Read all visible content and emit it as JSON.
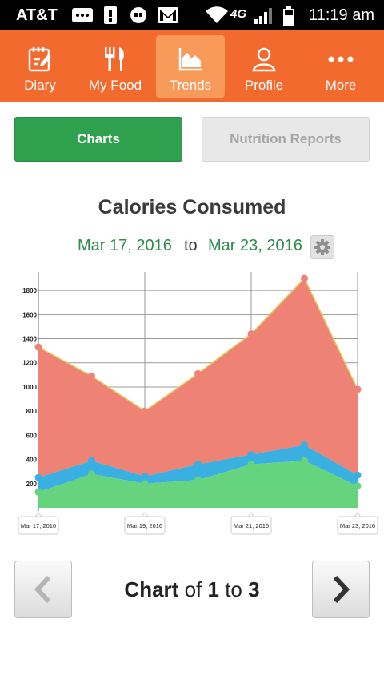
{
  "statusbar": {
    "carrier": "AT&T",
    "time": "11:19 am",
    "network": "4G"
  },
  "nav": {
    "items": [
      {
        "label": "Diary",
        "icon": "diary-icon"
      },
      {
        "label": "My Food",
        "icon": "fork-knife-icon"
      },
      {
        "label": "Trends",
        "icon": "trends-icon",
        "active": true
      },
      {
        "label": "Profile",
        "icon": "profile-icon"
      },
      {
        "label": "More",
        "icon": "more-dots-icon"
      }
    ]
  },
  "segments": {
    "charts": "Charts",
    "reports": "Nutrition Reports"
  },
  "chart_header": {
    "title": "Calories Consumed",
    "start_date": "Mar 17, 2016",
    "to": "to",
    "end_date": "Mar 23, 2016"
  },
  "chart_data": {
    "type": "area",
    "title": "Calories Consumed",
    "x": [
      "Mar 17, 2016",
      "Mar 18, 2016",
      "Mar 19, 2016",
      "Mar 20, 2016",
      "Mar 21, 2016",
      "Mar 22, 2016",
      "Mar 23, 2016"
    ],
    "x_tick_labels": [
      "Mar 17, 2016",
      "Mar 19, 2016",
      "Mar 21, 2016",
      "Mar 23, 2016"
    ],
    "y_ticks": [
      200,
      400,
      600,
      800,
      1000,
      1200,
      1400,
      1600,
      1800
    ],
    "ylim": [
      0,
      1900
    ],
    "stacked": true,
    "series": [
      {
        "values": [
          130,
          280,
          200,
          230,
          360,
          390,
          180
        ],
        "color": "#66d37e"
      },
      {
        "values": [
          120,
          110,
          60,
          130,
          80,
          130,
          90
        ],
        "color": "#3aafe2"
      },
      {
        "values": [
          1080,
          700,
          540,
          750,
          1000,
          1380,
          710
        ],
        "color": "#ee8275"
      }
    ],
    "grid": true
  },
  "pager": {
    "word_chart": "Chart",
    "word_of": "of",
    "current": "1",
    "word_to": "to",
    "total": "3"
  },
  "colors": {
    "nav_bg": "#f26a2e",
    "nav_active": "#f89a5a",
    "charts_button": "#2fa04e",
    "date_green": "#2c8a4a"
  }
}
